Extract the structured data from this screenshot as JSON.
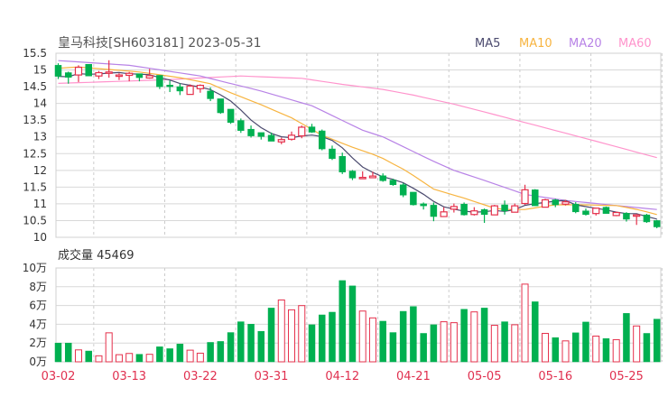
{
  "chart_data": {
    "type": "candlestick",
    "title": "皇马科技[SH603181] 2023-05-31",
    "legend": [
      {
        "name": "MA5",
        "color": "#4b4a6e"
      },
      {
        "name": "MA10",
        "color": "#f7b440"
      },
      {
        "name": "MA20",
        "color": "#b883e6"
      },
      {
        "name": "MA60",
        "color": "#ff94cc"
      }
    ],
    "legend_placement": "top-right",
    "colors": {
      "up": "#e5304b",
      "down": "#00b050",
      "grid": "#d8d8d8",
      "axis_label": "#e0304f"
    },
    "price_axis": {
      "ylim": [
        10,
        15.5
      ],
      "ticks": [
        "10",
        "10.5",
        "11",
        "11.5",
        "12",
        "12.5",
        "13",
        "13.5",
        "14",
        "14.5",
        "15",
        "15.5"
      ]
    },
    "x_labels": [
      {
        "index": 0,
        "label": "03-02"
      },
      {
        "index": 7,
        "label": "03-13"
      },
      {
        "index": 14,
        "label": "03-22"
      },
      {
        "index": 21,
        "label": "03-31"
      },
      {
        "index": 28,
        "label": "04-12"
      },
      {
        "index": 35,
        "label": "04-21"
      },
      {
        "index": 42,
        "label": "05-05"
      },
      {
        "index": 49,
        "label": "05-16"
      },
      {
        "index": 56,
        "label": "05-25"
      }
    ],
    "ohlc": [
      [
        15.14,
        15.2,
        14.73,
        14.81
      ],
      [
        14.92,
        14.95,
        14.59,
        14.78
      ],
      [
        14.85,
        15.14,
        14.64,
        15.08
      ],
      [
        15.17,
        15.17,
        14.82,
        14.82
      ],
      [
        14.82,
        14.97,
        14.73,
        14.92
      ],
      [
        14.9,
        15.29,
        14.77,
        14.94
      ],
      [
        14.81,
        14.9,
        14.7,
        14.85
      ],
      [
        14.84,
        14.94,
        14.66,
        14.9
      ],
      [
        14.89,
        14.89,
        14.66,
        14.77
      ],
      [
        14.76,
        15.03,
        14.74,
        14.83
      ],
      [
        14.84,
        14.84,
        14.43,
        14.5
      ],
      [
        14.55,
        14.68,
        14.34,
        14.5
      ],
      [
        14.5,
        14.59,
        14.25,
        14.37
      ],
      [
        14.27,
        14.57,
        14.27,
        14.52
      ],
      [
        14.44,
        14.57,
        14.32,
        14.54
      ],
      [
        14.37,
        14.48,
        14.07,
        14.14
      ],
      [
        14.14,
        14.14,
        13.69,
        13.72
      ],
      [
        13.83,
        13.83,
        13.39,
        13.43
      ],
      [
        13.49,
        13.55,
        13.12,
        13.19
      ],
      [
        13.23,
        13.34,
        12.98,
        13.03
      ],
      [
        13.13,
        13.13,
        12.92,
        13.01
      ],
      [
        13.05,
        13.13,
        12.87,
        12.87
      ],
      [
        12.85,
        12.98,
        12.78,
        12.92
      ],
      [
        12.93,
        13.16,
        12.89,
        13.05
      ],
      [
        13.03,
        13.34,
        12.96,
        13.29
      ],
      [
        13.3,
        13.39,
        13.12,
        13.14
      ],
      [
        13.18,
        13.22,
        12.6,
        12.64
      ],
      [
        12.64,
        12.74,
        12.31,
        12.35
      ],
      [
        12.42,
        12.53,
        11.89,
        11.95
      ],
      [
        11.98,
        12.01,
        11.71,
        11.77
      ],
      [
        11.77,
        11.97,
        11.75,
        11.79
      ],
      [
        11.78,
        11.96,
        11.78,
        11.83
      ],
      [
        11.84,
        11.91,
        11.66,
        11.69
      ],
      [
        11.71,
        11.75,
        11.54,
        11.57
      ],
      [
        11.57,
        11.62,
        11.2,
        11.26
      ],
      [
        11.35,
        11.35,
        10.95,
        10.97
      ],
      [
        11.0,
        11.04,
        10.83,
        10.94
      ],
      [
        10.96,
        11.04,
        10.48,
        10.62
      ],
      [
        10.62,
        10.9,
        10.62,
        10.76
      ],
      [
        10.84,
        11.01,
        10.74,
        10.92
      ],
      [
        10.99,
        11.04,
        10.65,
        10.67
      ],
      [
        10.68,
        10.9,
        10.65,
        10.79
      ],
      [
        10.83,
        10.86,
        10.43,
        10.68
      ],
      [
        10.67,
        10.97,
        10.67,
        10.94
      ],
      [
        10.97,
        11.1,
        10.68,
        10.79
      ],
      [
        10.75,
        11.01,
        10.75,
        10.94
      ],
      [
        11.01,
        11.57,
        10.97,
        11.42
      ],
      [
        11.42,
        11.44,
        10.94,
        10.94
      ],
      [
        10.9,
        11.15,
        10.9,
        11.12
      ],
      [
        11.12,
        11.15,
        10.9,
        10.97
      ],
      [
        10.99,
        11.12,
        10.95,
        11.06
      ],
      [
        10.99,
        11.05,
        10.72,
        10.76
      ],
      [
        10.79,
        10.86,
        10.65,
        10.68
      ],
      [
        10.71,
        10.87,
        10.65,
        10.87
      ],
      [
        10.9,
        10.92,
        10.71,
        10.71
      ],
      [
        10.65,
        10.77,
        10.63,
        10.74
      ],
      [
        10.72,
        10.75,
        10.47,
        10.54
      ],
      [
        10.65,
        10.7,
        10.37,
        10.67
      ],
      [
        10.67,
        10.7,
        10.43,
        10.46
      ],
      [
        10.5,
        10.52,
        10.27,
        10.31
      ]
    ],
    "ma_anchors": {
      "MA10": [
        [
          0,
          15.05
        ],
        [
          2,
          15.09
        ],
        [
          8,
          14.94
        ],
        [
          12,
          14.77
        ],
        [
          15,
          14.59
        ],
        [
          17,
          14.32
        ],
        [
          20,
          13.96
        ],
        [
          23,
          13.57
        ],
        [
          26,
          13.05
        ],
        [
          29,
          12.69
        ],
        [
          31.6,
          12.42
        ],
        [
          34.4,
          11.97
        ],
        [
          37,
          11.44
        ],
        [
          40,
          11.17
        ],
        [
          43.4,
          10.83
        ],
        [
          46,
          10.83
        ],
        [
          48.8,
          10.97
        ],
        [
          51.5,
          10.97
        ],
        [
          55,
          10.95
        ],
        [
          57.4,
          10.81
        ],
        [
          59,
          10.68
        ]
      ],
      "MA20": [
        [
          0,
          15.28
        ],
        [
          7,
          15.14
        ],
        [
          14,
          14.82
        ],
        [
          20,
          14.37
        ],
        [
          25,
          13.93
        ],
        [
          30,
          13.2
        ],
        [
          32,
          13.0
        ],
        [
          37,
          12.27
        ],
        [
          39,
          12.0
        ],
        [
          42,
          11.7
        ],
        [
          46,
          11.28
        ],
        [
          50,
          11.1
        ],
        [
          55,
          10.95
        ],
        [
          59,
          10.83
        ]
      ],
      "MA60": [
        [
          0,
          14.6
        ],
        [
          10,
          14.7
        ],
        [
          18,
          14.82
        ],
        [
          24,
          14.75
        ],
        [
          28,
          14.57
        ],
        [
          32,
          14.42
        ],
        [
          35,
          14.25
        ],
        [
          39,
          13.98
        ],
        [
          46,
          13.43
        ],
        [
          53,
          12.87
        ],
        [
          59,
          12.38
        ]
      ]
    },
    "volume": {
      "title": "成交量 45469",
      "unit": "万",
      "ylim": [
        0,
        10
      ],
      "ticks": [
        "0万",
        "2万",
        "4万",
        "6万",
        "8万",
        "10万"
      ],
      "values": [
        2.0,
        2.0,
        1.27,
        1.15,
        0.64,
        3.09,
        0.76,
        0.89,
        0.8,
        0.8,
        1.6,
        1.4,
        1.9,
        1.24,
        0.92,
        2.07,
        2.17,
        3.12,
        4.27,
        4.01,
        3.25,
        5.73,
        6.59,
        5.54,
        5.99,
        3.95,
        5.0,
        5.29,
        8.66,
        8.09,
        5.41,
        4.68,
        4.33,
        3.12,
        5.38,
        5.89,
        3.03,
        3.95,
        4.27,
        4.17,
        5.6,
        5.32,
        5.73,
        3.89,
        4.27,
        3.95,
        8.28,
        6.4,
        3.03,
        2.58,
        2.23,
        3.09,
        4.24,
        2.74,
        2.48,
        2.36,
        5.16,
        3.82,
        3.03,
        4.55
      ]
    }
  }
}
